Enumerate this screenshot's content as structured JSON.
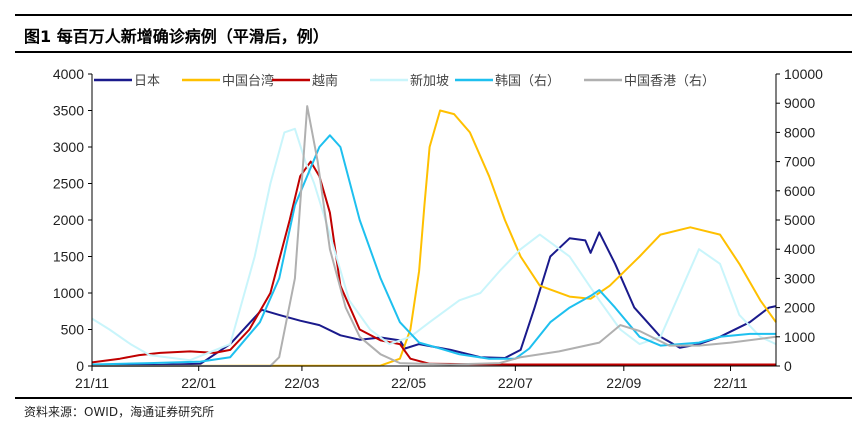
{
  "header": {
    "title": "图1  每百万人新增确诊病例（平滑后，例）"
  },
  "footer": {
    "source": "资料来源：OWID，海通证券研究所"
  },
  "chart_data": {
    "type": "line",
    "title": "每百万人新增确诊病例（平滑后，例）",
    "x_ticks": [
      "21/11",
      "22/01",
      "22/03",
      "22/05",
      "22/07",
      "22/09",
      "22/11"
    ],
    "x_tick_dates": [
      "2021-11-01",
      "2022-01-01",
      "2022-03-01",
      "2022-05-01",
      "2022-07-01",
      "2022-09-01",
      "2022-11-01"
    ],
    "xlim": [
      "2021-11-01",
      "2022-12-01"
    ],
    "ylim_left": [
      0,
      4000
    ],
    "y_ticks_left": [
      0,
      500,
      1000,
      1500,
      2000,
      2500,
      3000,
      3500,
      4000
    ],
    "ylim_right": [
      0,
      10000
    ],
    "y_ticks_right": [
      0,
      1000,
      2000,
      3000,
      4000,
      5000,
      6000,
      7000,
      8000,
      9000,
      10000
    ],
    "grid": false,
    "legend": "top",
    "series": [
      {
        "name": "日本",
        "axis": "left",
        "color": "#1a1a8c",
        "points": [
          [
            "2021-11-01",
            10
          ],
          [
            "2021-12-10",
            15
          ],
          [
            "2022-01-02",
            30
          ],
          [
            "2022-01-19",
            300
          ],
          [
            "2022-02-06",
            770
          ],
          [
            "2022-02-16",
            700
          ],
          [
            "2022-02-28",
            620
          ],
          [
            "2022-03-11",
            560
          ],
          [
            "2022-03-23",
            420
          ],
          [
            "2022-04-03",
            360
          ],
          [
            "2022-04-15",
            390
          ],
          [
            "2022-04-26",
            350
          ],
          [
            "2022-04-29",
            240
          ],
          [
            "2022-05-07",
            300
          ],
          [
            "2022-05-25",
            220
          ],
          [
            "2022-06-11",
            120
          ],
          [
            "2022-06-25",
            110
          ],
          [
            "2022-07-04",
            220
          ],
          [
            "2022-07-12",
            800
          ],
          [
            "2022-07-21",
            1500
          ],
          [
            "2022-08-01",
            1750
          ],
          [
            "2022-08-10",
            1720
          ],
          [
            "2022-08-13",
            1550
          ],
          [
            "2022-08-18",
            1830
          ],
          [
            "2022-08-27",
            1400
          ],
          [
            "2022-09-07",
            800
          ],
          [
            "2022-09-22",
            400
          ],
          [
            "2022-10-03",
            250
          ],
          [
            "2022-10-14",
            300
          ],
          [
            "2022-10-26",
            400
          ],
          [
            "2022-11-12",
            600
          ],
          [
            "2022-11-23",
            800
          ],
          [
            "2022-11-27",
            820
          ]
        ]
      },
      {
        "name": "中国台湾",
        "axis": "left",
        "color": "#ffc000",
        "points": [
          [
            "2021-11-01",
            0
          ],
          [
            "2022-04-15",
            5
          ],
          [
            "2022-04-26",
            100
          ],
          [
            "2022-05-02",
            500
          ],
          [
            "2022-05-07",
            1300
          ],
          [
            "2022-05-10",
            2200
          ],
          [
            "2022-05-13",
            3000
          ],
          [
            "2022-05-19",
            3500
          ],
          [
            "2022-05-27",
            3450
          ],
          [
            "2022-06-05",
            3200
          ],
          [
            "2022-06-16",
            2600
          ],
          [
            "2022-06-25",
            2000
          ],
          [
            "2022-07-04",
            1500
          ],
          [
            "2022-07-15",
            1100
          ],
          [
            "2022-08-01",
            950
          ],
          [
            "2022-08-13",
            920
          ],
          [
            "2022-08-24",
            1100
          ],
          [
            "2022-09-10",
            1500
          ],
          [
            "2022-09-22",
            1800
          ],
          [
            "2022-10-09",
            1900
          ],
          [
            "2022-10-26",
            1800
          ],
          [
            "2022-11-06",
            1400
          ],
          [
            "2022-11-18",
            900
          ],
          [
            "2022-11-27",
            600
          ]
        ]
      },
      {
        "name": "越南",
        "axis": "left",
        "color": "#c00000",
        "points": [
          [
            "2021-11-01",
            50
          ],
          [
            "2021-11-17",
            100
          ],
          [
            "2021-11-28",
            150
          ],
          [
            "2021-12-10",
            180
          ],
          [
            "2021-12-27",
            200
          ],
          [
            "2022-01-10",
            180
          ],
          [
            "2022-01-19",
            220
          ],
          [
            "2022-01-30",
            500
          ],
          [
            "2022-02-11",
            1000
          ],
          [
            "2022-02-22",
            2000
          ],
          [
            "2022-02-28",
            2600
          ],
          [
            "2022-03-06",
            2800
          ],
          [
            "2022-03-11",
            2600
          ],
          [
            "2022-03-17",
            2100
          ],
          [
            "2022-03-23",
            1100
          ],
          [
            "2022-04-03",
            500
          ],
          [
            "2022-04-15",
            350
          ],
          [
            "2022-04-26",
            300
          ],
          [
            "2022-05-02",
            100
          ],
          [
            "2022-05-13",
            30
          ],
          [
            "2022-07-01",
            20
          ],
          [
            "2022-11-27",
            20
          ]
        ]
      },
      {
        "name": "新加坡",
        "axis": "left",
        "color": "#c9f5fb",
        "points": [
          [
            "2021-11-01",
            650
          ],
          [
            "2021-11-11",
            500
          ],
          [
            "2021-11-23",
            300
          ],
          [
            "2021-12-04",
            150
          ],
          [
            "2021-12-27",
            80
          ],
          [
            "2022-01-19",
            300
          ],
          [
            "2022-02-02",
            1500
          ],
          [
            "2022-02-11",
            2500
          ],
          [
            "2022-02-19",
            3200
          ],
          [
            "2022-02-25",
            3250
          ],
          [
            "2022-03-03",
            2800
          ],
          [
            "2022-03-08",
            2500
          ],
          [
            "2022-03-17",
            1800
          ],
          [
            "2022-03-28",
            900
          ],
          [
            "2022-04-09",
            500
          ],
          [
            "2022-04-20",
            300
          ],
          [
            "2022-05-02",
            400
          ],
          [
            "2022-05-13",
            600
          ],
          [
            "2022-05-30",
            900
          ],
          [
            "2022-06-11",
            1000
          ],
          [
            "2022-06-22",
            1300
          ],
          [
            "2022-07-04",
            1600
          ],
          [
            "2022-07-15",
            1800
          ],
          [
            "2022-08-01",
            1500
          ],
          [
            "2022-08-18",
            900
          ],
          [
            "2022-08-30",
            500
          ],
          [
            "2022-09-10",
            300
          ],
          [
            "2022-09-22",
            400
          ],
          [
            "2022-10-03",
            1000
          ],
          [
            "2022-10-14",
            1600
          ],
          [
            "2022-10-26",
            1400
          ],
          [
            "2022-11-06",
            700
          ],
          [
            "2022-11-18",
            400
          ],
          [
            "2022-11-27",
            300
          ]
        ]
      },
      {
        "name": "韩国（右）",
        "axis": "right",
        "color": "#1ec0ef",
        "points": [
          [
            "2021-11-01",
            50
          ],
          [
            "2021-12-04",
            100
          ],
          [
            "2022-01-02",
            150
          ],
          [
            "2022-01-19",
            300
          ],
          [
            "2022-02-05",
            1500
          ],
          [
            "2022-02-16",
            3000
          ],
          [
            "2022-02-25",
            5500
          ],
          [
            "2022-03-11",
            7500
          ],
          [
            "2022-03-17",
            7900
          ],
          [
            "2022-03-23",
            7500
          ],
          [
            "2022-04-03",
            5000
          ],
          [
            "2022-04-15",
            3000
          ],
          [
            "2022-04-26",
            1500
          ],
          [
            "2022-05-07",
            800
          ],
          [
            "2022-05-19",
            600
          ],
          [
            "2022-05-30",
            400
          ],
          [
            "2022-06-16",
            250
          ],
          [
            "2022-07-01",
            250
          ],
          [
            "2022-07-09",
            600
          ],
          [
            "2022-07-21",
            1500
          ],
          [
            "2022-08-01",
            2000
          ],
          [
            "2022-08-13",
            2400
          ],
          [
            "2022-08-18",
            2600
          ],
          [
            "2022-08-27",
            2000
          ],
          [
            "2022-09-10",
            1000
          ],
          [
            "2022-09-22",
            700
          ],
          [
            "2022-10-14",
            800
          ],
          [
            "2022-10-26",
            1000
          ],
          [
            "2022-11-12",
            1100
          ],
          [
            "2022-11-27",
            1100
          ]
        ]
      },
      {
        "name": "中国香港（右）",
        "axis": "right",
        "color": "#b0b0b0",
        "points": [
          [
            "2021-11-01",
            0
          ],
          [
            "2022-02-11",
            0
          ],
          [
            "2022-02-16",
            300
          ],
          [
            "2022-02-25",
            3000
          ],
          [
            "2022-03-04",
            8900
          ],
          [
            "2022-03-10",
            7000
          ],
          [
            "2022-03-17",
            4000
          ],
          [
            "2022-03-26",
            2000
          ],
          [
            "2022-04-03",
            1000
          ],
          [
            "2022-04-15",
            400
          ],
          [
            "2022-04-26",
            100
          ],
          [
            "2022-05-25",
            50
          ],
          [
            "2022-06-22",
            100
          ],
          [
            "2022-07-04",
            300
          ],
          [
            "2022-07-26",
            500
          ],
          [
            "2022-08-18",
            800
          ],
          [
            "2022-08-30",
            1400
          ],
          [
            "2022-09-10",
            1200
          ],
          [
            "2022-09-27",
            700
          ],
          [
            "2022-10-14",
            700
          ],
          [
            "2022-11-01",
            800
          ],
          [
            "2022-11-27",
            1000
          ]
        ]
      }
    ]
  }
}
